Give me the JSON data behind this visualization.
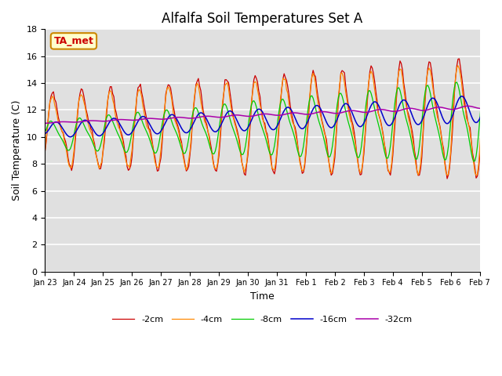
{
  "title": "Alfalfa Soil Temperatures Set A",
  "xlabel": "Time",
  "ylabel": "Soil Temperature (C)",
  "ylim": [
    0,
    18
  ],
  "yticks": [
    0,
    2,
    4,
    6,
    8,
    10,
    12,
    14,
    16,
    18
  ],
  "xtick_labels": [
    "Jan 23",
    "Jan 24",
    "Jan 25",
    "Jan 26",
    "Jan 27",
    "Jan 28",
    "Jan 29",
    "Jan 30",
    "Jan 31",
    "Feb 1",
    "Feb 2",
    "Feb 3",
    "Feb 4",
    "Feb 5",
    "Feb 6",
    "Feb 7"
  ],
  "series_colors": {
    "-2cm": "#cc0000",
    "-4cm": "#ff8800",
    "-8cm": "#00cc00",
    "-16cm": "#0000cc",
    "-32cm": "#aa00aa"
  },
  "legend_labels": [
    "-2cm",
    "-4cm",
    "-8cm",
    "-16cm",
    "-32cm"
  ],
  "annotation_text": "TA_met",
  "annotation_bg": "#ffffcc",
  "annotation_border": "#cc8800",
  "background_color": "#ffffff",
  "plot_bg_color": "#e0e0e0",
  "grid_color": "#ffffff",
  "title_fontsize": 12,
  "axis_fontsize": 9,
  "tick_fontsize": 8,
  "n_hours": 385
}
